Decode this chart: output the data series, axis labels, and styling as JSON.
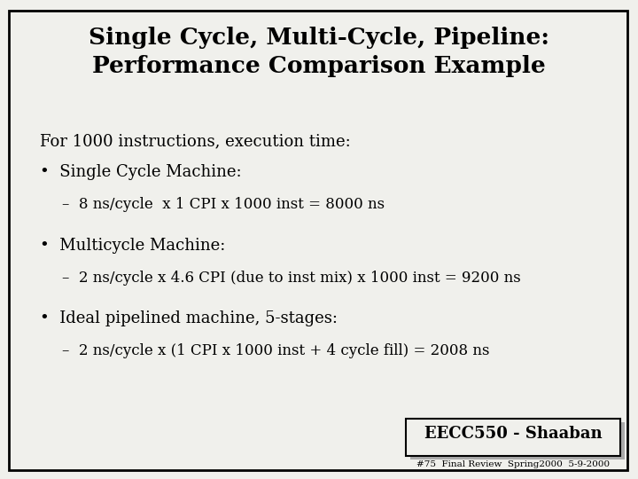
{
  "title_line1": "Single Cycle, Multi-Cycle, Pipeline:",
  "title_line2": "Performance Comparison Example",
  "intro": "For 1000 instructions, execution time:",
  "bullet1_header": "Single Cycle Machine:",
  "bullet1_detail": "–  8 ns/cycle  x 1 CPI x 1000 inst = 8000 ns",
  "bullet2_header": "Multicycle Machine:",
  "bullet2_detail": "–  2 ns/cycle x 4.6 CPI (due to inst mix) x 1000 inst = 9200 ns",
  "bullet3_header": "Ideal pipelined machine, 5-stages:",
  "bullet3_detail": "–  2 ns/cycle x (1 CPI x 1000 inst + 4 cycle fill) = 2008 ns",
  "footer_main": "EECC550 - Shaaban",
  "footer_sub": "#75  Final Review  Spring2000  5-9-2000",
  "bg_color": "#f0f0ec",
  "border_color": "#000000",
  "text_color": "#000000",
  "title_fontsize": 19,
  "body_fontsize": 13,
  "detail_fontsize": 12,
  "footer_fontsize": 13,
  "footer_sub_fontsize": 7.5
}
